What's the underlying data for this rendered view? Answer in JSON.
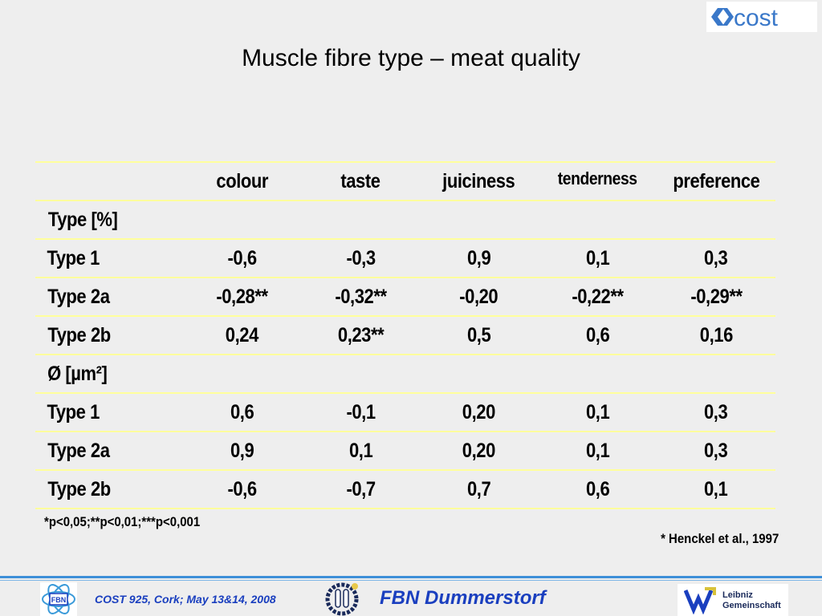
{
  "slide": {
    "title": "Muscle fibre type – meat quality",
    "logo_text": "cost"
  },
  "table": {
    "headers": [
      "",
      "colour",
      "taste",
      "juiciness",
      "tenderness",
      "preference"
    ],
    "rows": [
      [
        "Type [%]",
        "",
        "",
        "",
        "",
        ""
      ],
      [
        "Type 1",
        "-0,6",
        "-0,3",
        "0,9",
        "0,1",
        "0,3"
      ],
      [
        "Type 2a",
        "-0,28**",
        "-0,32**",
        "-0,20",
        "-0,22**",
        "-0,29**"
      ],
      [
        "Type 2b",
        "0,24",
        "0,23**",
        "0,5",
        "0,6",
        "0,16"
      ],
      [
        "Ø [µm²]",
        "",
        "",
        "",
        "",
        ""
      ],
      [
        "Type 1",
        "0,6",
        "-0,1",
        "0,20",
        "0,1",
        "0,3"
      ],
      [
        "Type 2a",
        "0,9",
        "0,1",
        "0,20",
        "0,1",
        "0,3"
      ],
      [
        "Type 2b",
        "-0,6",
        "-0,7",
        "0,7",
        "0,6",
        "0,1"
      ]
    ]
  },
  "footnote": "*p<0,05;**p<0,01;***p<0,001",
  "citation": "* Henckel et al., 1997",
  "footer": {
    "event": "COST 925, Cork; May 13&14, 2008",
    "institute": "FBN Dummerstorf",
    "fbn_logo_text": "FBN",
    "leibniz_line1": "Leibniz",
    "leibniz_line2": "Gemeinschaft"
  },
  "colors": {
    "background": "#eeeeee",
    "row_rule": "#ffff9c",
    "footer_blue": "#1a3fbf",
    "cost_blue": "#3a78c9"
  }
}
